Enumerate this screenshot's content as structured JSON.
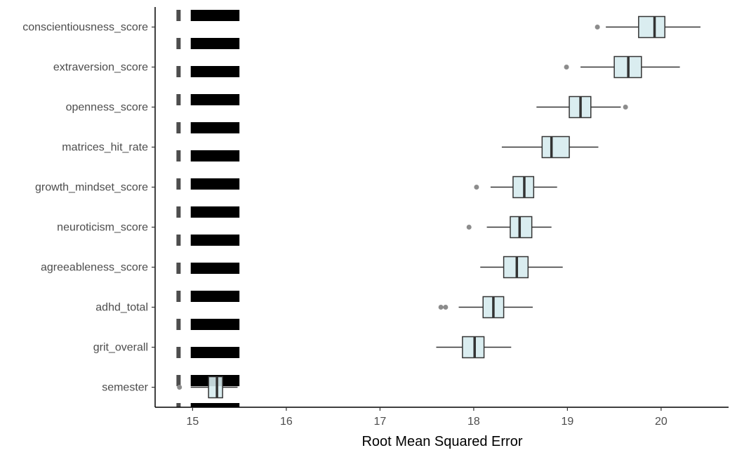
{
  "chart_data": {
    "type": "boxplot",
    "orientation": "horizontal",
    "title": "",
    "xlabel": "Root Mean Squared Error",
    "ylabel": "",
    "xlim": [
      14.6,
      20.72
    ],
    "xticks": [
      15,
      16,
      17,
      18,
      19,
      20
    ],
    "grid": false,
    "legend": "none",
    "box_fill": "#d6ebee",
    "box_stroke": "#333333",
    "outlier_color": "#8c8c8c",
    "reference_line": {
      "x": 14.85,
      "style": "dashed",
      "color": "#4d4d4d"
    },
    "reference_band": {
      "x_range": [
        14.98,
        15.5
      ],
      "color": "#000000"
    },
    "categories": [
      "conscientiousness_score",
      "extraversion_score",
      "openness_score",
      "matrices_hit_rate",
      "growth_mindset_score",
      "neuroticism_score",
      "agreeableness_score",
      "adhd_total",
      "grit_overall",
      "semester"
    ],
    "boxes": [
      {
        "category": "conscientiousness_score",
        "whisker_low": 19.41,
        "q1": 19.76,
        "median": 19.93,
        "q3": 20.04,
        "whisker_high": 20.42,
        "outliers": [
          19.32
        ]
      },
      {
        "category": "extraversion_score",
        "whisker_low": 19.14,
        "q1": 19.5,
        "median": 19.65,
        "q3": 19.79,
        "whisker_high": 20.2,
        "outliers": [
          18.99
        ]
      },
      {
        "category": "openness_score",
        "whisker_low": 18.67,
        "q1": 19.02,
        "median": 19.14,
        "q3": 19.25,
        "whisker_high": 19.57,
        "outliers": [
          19.62
        ]
      },
      {
        "category": "matrices_hit_rate",
        "whisker_low": 18.3,
        "q1": 18.73,
        "median": 18.83,
        "q3": 19.02,
        "whisker_high": 19.33,
        "outliers": []
      },
      {
        "category": "growth_mindset_score",
        "whisker_low": 18.18,
        "q1": 18.42,
        "median": 18.54,
        "q3": 18.64,
        "whisker_high": 18.89,
        "outliers": [
          18.03
        ]
      },
      {
        "category": "neuroticism_score",
        "whisker_low": 18.14,
        "q1": 18.39,
        "median": 18.49,
        "q3": 18.62,
        "whisker_high": 18.83,
        "outliers": [
          17.95
        ]
      },
      {
        "category": "agreeableness_score",
        "whisker_low": 18.07,
        "q1": 18.32,
        "median": 18.46,
        "q3": 18.58,
        "whisker_high": 18.95,
        "outliers": []
      },
      {
        "category": "adhd_total",
        "whisker_low": 17.84,
        "q1": 18.1,
        "median": 18.21,
        "q3": 18.32,
        "whisker_high": 18.63,
        "outliers": [
          17.65,
          17.7
        ]
      },
      {
        "category": "grit_overall",
        "whisker_low": 17.6,
        "q1": 17.88,
        "median": 18.01,
        "q3": 18.11,
        "whisker_high": 18.4,
        "outliers": []
      },
      {
        "category": "semester",
        "whisker_low": 14.98,
        "q1": 15.17,
        "median": 15.26,
        "q3": 15.32,
        "whisker_high": 15.48,
        "outliers": [
          14.86
        ]
      }
    ]
  }
}
